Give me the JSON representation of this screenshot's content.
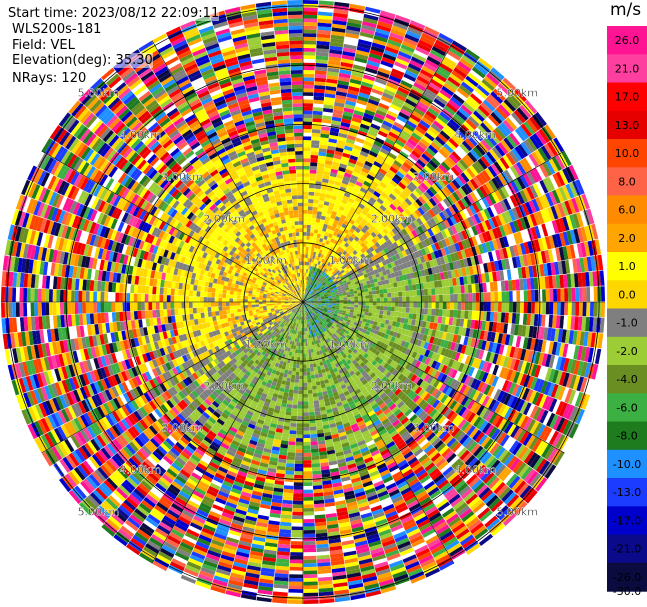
{
  "info": {
    "start_time": "Start time: 2023/08/12 22:09:11",
    "site": "WLS200s-181",
    "field": "Field: VEL",
    "elevation": "Elevation(deg): 35.30",
    "nrays": "NRays: 120"
  },
  "colorbar": {
    "unit": "m/s",
    "ticks": [
      "26.0",
      "21.0",
      "17.0",
      "13.0",
      "10.0",
      "8.0",
      "6.0",
      "2.0",
      "1.0",
      "0.0",
      "-1.0",
      "-2.0",
      "-4.0",
      "-6.0",
      "-8.0",
      "-10.0",
      "-13.0",
      "-17.0",
      "-21.0",
      "-26.0",
      "-30.0"
    ],
    "colors": [
      "#ff1493",
      "#ff3fa0",
      "#ff0000",
      "#e60000",
      "#ff4500",
      "#ff6347",
      "#ff8c00",
      "#ffa500",
      "#ffff00",
      "#ffd700",
      "#7f7f7f",
      "#9ccc36",
      "#6b8e23",
      "#3cb043",
      "#1e7b1e",
      "#1e90ff",
      "#1c3cff",
      "#0000cd",
      "#0a0a8a",
      "#0b0b40"
    ]
  },
  "chart_data": {
    "type": "heatmap",
    "projection": "polar PPI",
    "field": "VEL",
    "units": "m/s",
    "n_rays": 120,
    "range_ring_labels": [
      "1.00km",
      "2.00km",
      "3.00km",
      "4.00km",
      "5.00km"
    ],
    "range_rings_km": [
      1,
      2,
      3,
      4,
      5
    ],
    "max_range_km": 5.1,
    "value_range": [
      -30,
      26
    ],
    "overview": "Near-range (< 2.7 km) is dominated by weak positive velocities (yellow/orange, ~1-6 m/s) toward the north/north-west and weak negative velocities (green, ~-1 to -4 m/s) toward the south and east; beyond ~3 km the data is noisy, spanning the full color scale."
  }
}
